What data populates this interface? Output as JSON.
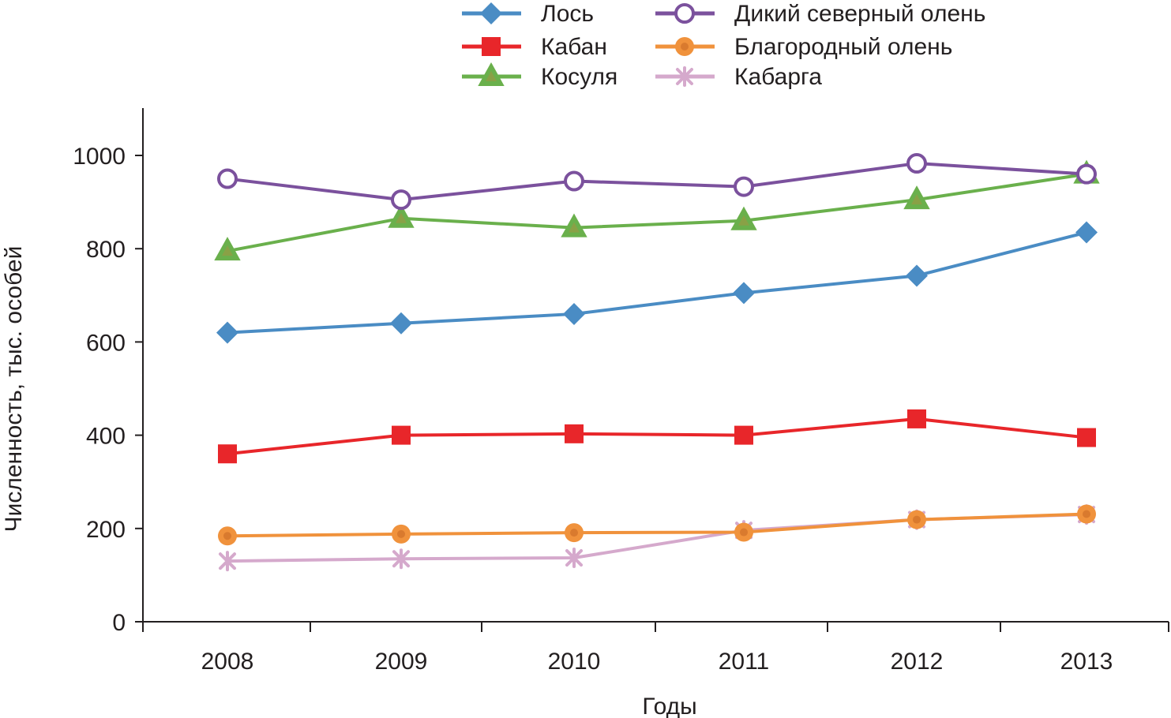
{
  "chart_data": {
    "type": "line",
    "title": "",
    "xlabel": "Годы",
    "ylabel": "Численность, тыс. особей",
    "categories": [
      "2008",
      "2009",
      "2010",
      "2011",
      "2012",
      "2013"
    ],
    "ylim": [
      0,
      1100
    ],
    "yticks": [
      0,
      200,
      400,
      600,
      800,
      1000
    ],
    "grid": false,
    "legend_position": "top-center",
    "series": [
      {
        "name": "Лось",
        "color": "#4a8cc4",
        "marker": "diamond",
        "values": [
          620,
          640,
          660,
          705,
          742,
          835
        ]
      },
      {
        "name": "Кабан",
        "color": "#e8262a",
        "marker": "square",
        "values": [
          360,
          400,
          403,
          400,
          435,
          395
        ]
      },
      {
        "name": "Косуля",
        "color": "#6ab04c",
        "marker": "triangle",
        "values": [
          795,
          865,
          845,
          860,
          905,
          960
        ]
      },
      {
        "name": "Дикий северный олень",
        "color": "#7b519d",
        "marker": "circle-open",
        "values": [
          950,
          905,
          945,
          933,
          983,
          960
        ]
      },
      {
        "name": "Благородный олень",
        "color": "#f0923c",
        "marker": "circle",
        "values": [
          184,
          188,
          191,
          192,
          219,
          231
        ]
      },
      {
        "name": "Кабарга",
        "color": "#d5a9cc",
        "marker": "asterisk",
        "values": [
          130,
          135,
          137,
          196,
          219,
          230
        ]
      }
    ]
  }
}
